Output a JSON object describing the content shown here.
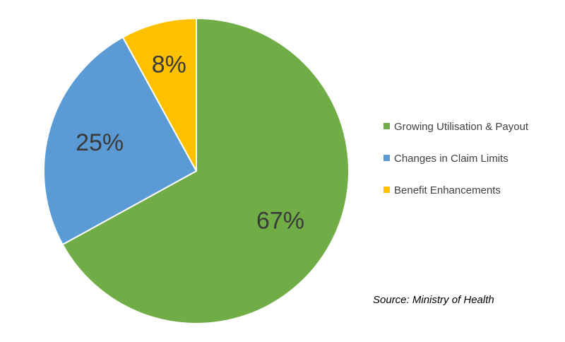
{
  "chart_data": {
    "type": "pie",
    "title": "",
    "start_angle_deg": 0,
    "direction": "clockwise",
    "categories": [
      "Growing Utilisation & Payout",
      "Changes in Claim Limits",
      "Benefit Enhancements"
    ],
    "values": [
      67,
      25,
      8
    ],
    "labels": [
      "67%",
      "25%",
      "8%"
    ],
    "colors": [
      "#70AD47",
      "#5B9BD5",
      "#FFC000"
    ],
    "legend_position": "right",
    "source": "Source: Ministry of Health"
  }
}
